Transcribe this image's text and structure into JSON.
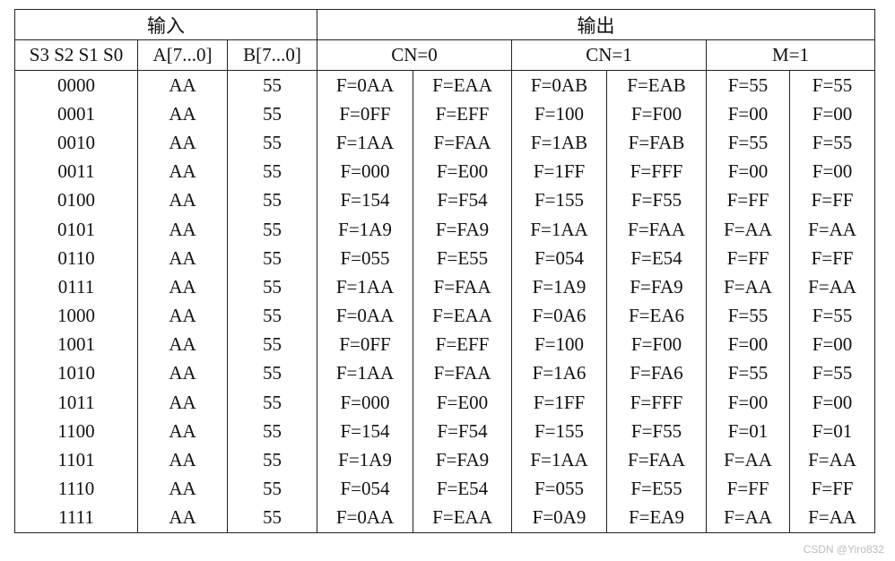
{
  "table": {
    "group_header": [
      "输入",
      "输出"
    ],
    "header": [
      "S3 S2 S1 S0",
      "A[7...0]",
      "B[7...0]",
      "CN=0",
      "CN=1",
      "M=1"
    ],
    "rows": [
      [
        "0000",
        "AA",
        "55",
        "F=0AA",
        "F=EAA",
        "F=0AB",
        "F=EAB",
        "F=55",
        "F=55"
      ],
      [
        "0001",
        "AA",
        "55",
        "F=0FF",
        "F=EFF",
        "F=100",
        "F=F00",
        "F=00",
        "F=00"
      ],
      [
        "0010",
        "AA",
        "55",
        "F=1AA",
        "F=FAA",
        "F=1AB",
        "F=FAB",
        "F=55",
        "F=55"
      ],
      [
        "0011",
        "AA",
        "55",
        "F=000",
        "F=E00",
        "F=1FF",
        "F=FFF",
        "F=00",
        "F=00"
      ],
      [
        "0100",
        "AA",
        "55",
        "F=154",
        "F=F54",
        "F=155",
        "F=F55",
        "F=FF",
        "F=FF"
      ],
      [
        "0101",
        "AA",
        "55",
        "F=1A9",
        "F=FA9",
        "F=1AA",
        "F=FAA",
        "F=AA",
        "F=AA"
      ],
      [
        "0110",
        "AA",
        "55",
        "F=055",
        "F=E55",
        "F=054",
        "F=E54",
        "F=FF",
        "F=FF"
      ],
      [
        "0111",
        "AA",
        "55",
        "F=1AA",
        "F=FAA",
        "F=1A9",
        "F=FA9",
        "F=AA",
        "F=AA"
      ],
      [
        "1000",
        "AA",
        "55",
        "F=0AA",
        "F=EAA",
        "F=0A6",
        "F=EA6",
        "F=55",
        "F=55"
      ],
      [
        "1001",
        "AA",
        "55",
        "F=0FF",
        "F=EFF",
        "F=100",
        "F=F00",
        "F=00",
        "F=00"
      ],
      [
        "1010",
        "AA",
        "55",
        "F=1AA",
        "F=FAA",
        "F=1A6",
        "F=FA6",
        "F=55",
        "F=55"
      ],
      [
        "1011",
        "AA",
        "55",
        "F=000",
        "F=E00",
        "F=1FF",
        "F=FFF",
        "F=00",
        "F=00"
      ],
      [
        "1100",
        "AA",
        "55",
        "F=154",
        "F=F54",
        "F=155",
        "F=F55",
        "F=01",
        "F=01"
      ],
      [
        "1101",
        "AA",
        "55",
        "F=1A9",
        "F=FA9",
        "F=1AA",
        "F=FAA",
        "F=AA",
        "F=AA"
      ],
      [
        "1110",
        "AA",
        "55",
        "F=054",
        "F=E54",
        "F=055",
        "F=E55",
        "F=FF",
        "F=FF"
      ],
      [
        "1111",
        "AA",
        "55",
        "F=0AA",
        "F=EAA",
        "F=0A9",
        "F=EA9",
        "F=AA",
        "F=AA"
      ]
    ]
  },
  "watermark": "CSDN @Yiro832"
}
